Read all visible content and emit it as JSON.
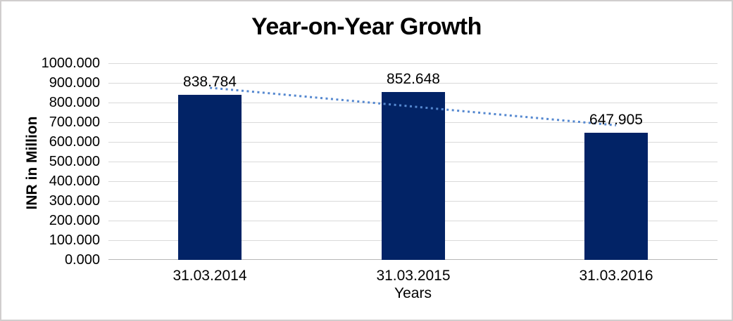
{
  "window": {
    "background": "#ffffff",
    "border_color": "#d0cece"
  },
  "chart_data": {
    "type": "bar",
    "title": "Year-on-Year Growth",
    "xlabel": "Years",
    "ylabel": "INR in Million",
    "categories": [
      "31.03.2014",
      "31.03.2015",
      "31.03.2016"
    ],
    "values": [
      838.784,
      852.648,
      647.905
    ],
    "data_labels": [
      "838.784",
      "852.648",
      "647.905"
    ],
    "ylim": [
      0,
      1000
    ],
    "y_tick_step": 100,
    "y_tick_decimals": 3,
    "grid": true,
    "legend": "none",
    "bar_color": "#022366",
    "gridline_color": "#d9d9d9",
    "axis_line_color": "#b7b7b7",
    "text_color": "#000000",
    "trendline": {
      "type": "linear",
      "style": "dotted",
      "color": "#5588d0",
      "start_value": 875.2,
      "end_value": 684.3
    }
  }
}
